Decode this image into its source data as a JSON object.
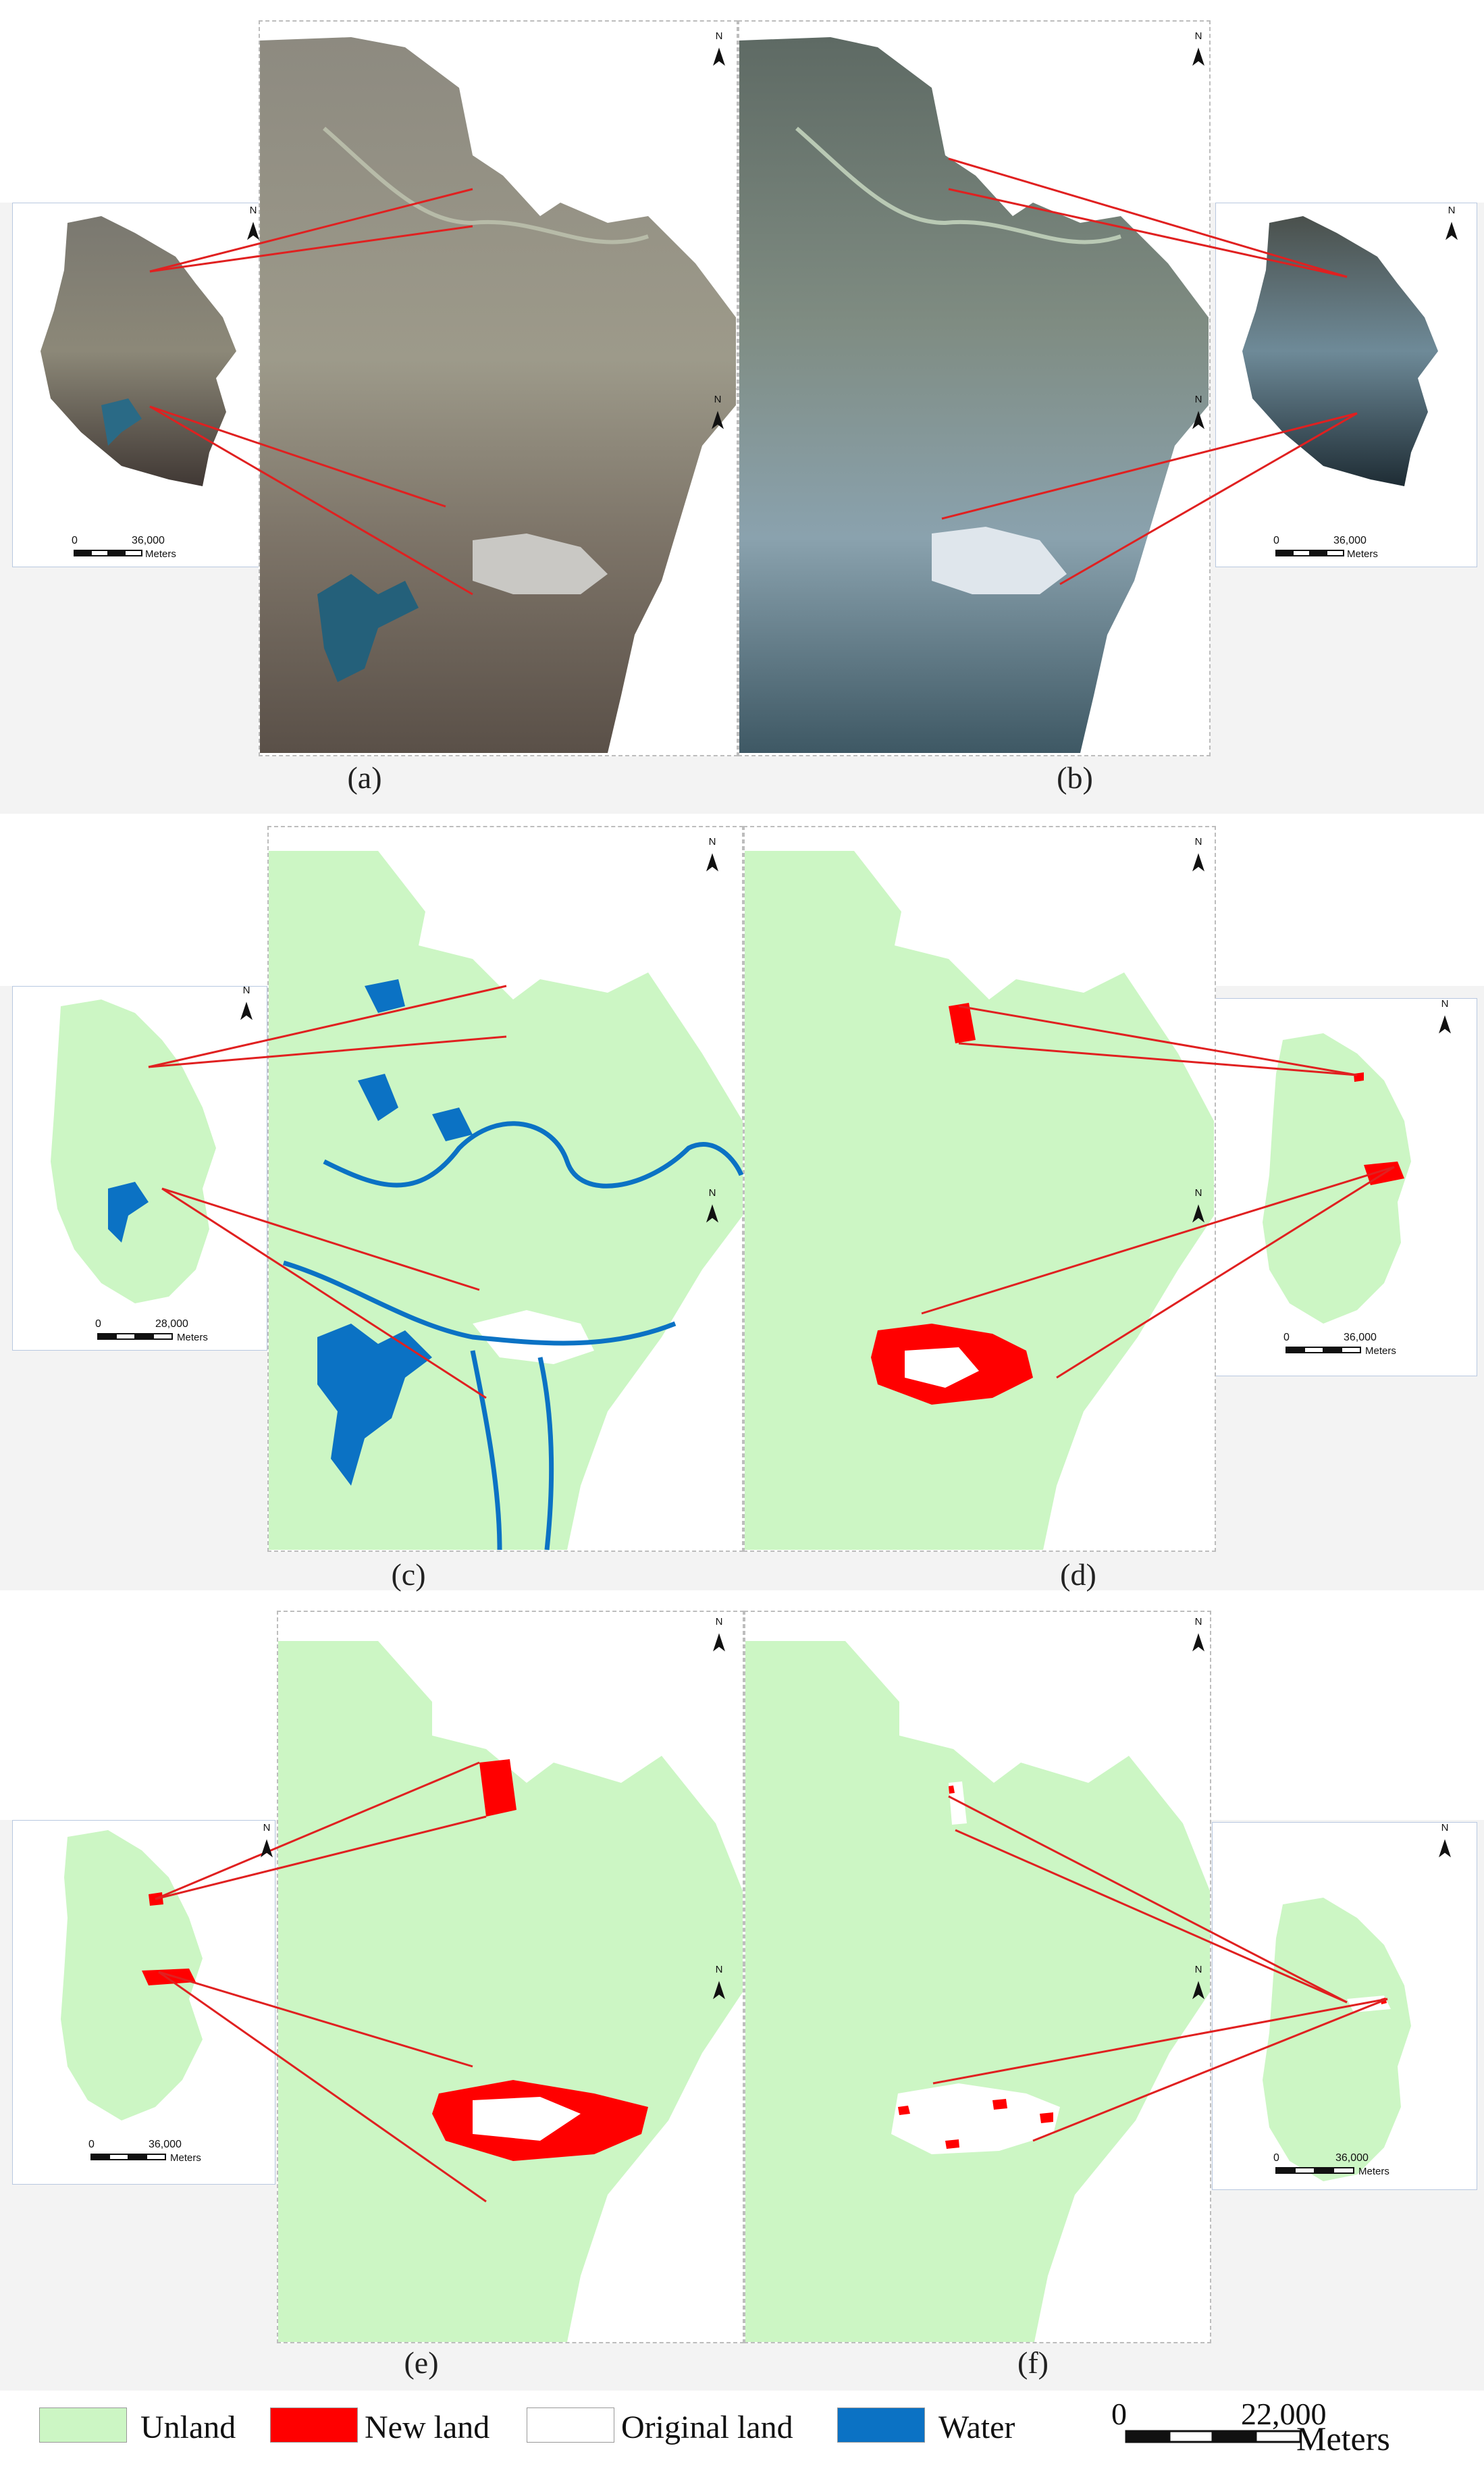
{
  "panels": [
    {
      "id": "a",
      "label": "(a)"
    },
    {
      "id": "b",
      "label": "(b)"
    },
    {
      "id": "c",
      "label": "(c)"
    },
    {
      "id": "d",
      "label": "(d)"
    },
    {
      "id": "e",
      "label": "(e)"
    },
    {
      "id": "f",
      "label": "(f)"
    }
  ],
  "scalebars": {
    "a": {
      "start": "0",
      "end": "36,000",
      "unit": "Meters"
    },
    "b": {
      "start": "0",
      "end": "36,000",
      "unit": "Meters"
    },
    "c": {
      "start": "0",
      "end": "28,000",
      "unit": "Meters"
    },
    "d": {
      "start": "0",
      "end": "36,000",
      "unit": "Meters"
    },
    "e": {
      "start": "0",
      "end": "36,000",
      "unit": "Meters"
    },
    "f": {
      "start": "0",
      "end": "36,000",
      "unit": "Meters"
    }
  },
  "north_label": "N",
  "legend": {
    "items": [
      {
        "label": "Unland",
        "color": "#ccf6c4"
      },
      {
        "label": "New land",
        "color": "#ff0000"
      },
      {
        "label": "Original land",
        "color": "#ffffff"
      },
      {
        "label": "Water",
        "color": "#0b72c4"
      }
    ],
    "scale_start": "0",
    "scale_end": "22,000",
    "scale_unit": "Meters"
  },
  "colors": {
    "unland": "#ccf6c4",
    "new_land": "#ff0000",
    "original_land": "#ffffff",
    "water": "#0b72c4",
    "leader": "#e02020",
    "satellite_a": "#8a8578",
    "satellite_b": "#6f8a96"
  }
}
